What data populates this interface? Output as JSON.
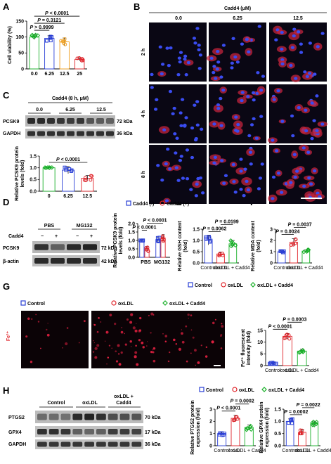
{
  "panels": {
    "A": {
      "letter": "A"
    },
    "B": {
      "letter": "B",
      "title": "Cadd4 (μM)",
      "columns": [
        "0.0",
        "6.25",
        "12.5"
      ],
      "rows": [
        "2 h",
        "4 h",
        "8 h"
      ]
    },
    "C": {
      "letter": "C",
      "title": "Cadd4 (8 h, μM)",
      "lanes": [
        "0.0",
        "6.25",
        "12.5"
      ],
      "bands": [
        "PCSK9",
        "GAPDH"
      ],
      "kda": [
        "72 kDa",
        "36 kDa"
      ]
    },
    "D": {
      "letter": "D",
      "groups": [
        "PBS",
        "MG132"
      ],
      "row_label": "Cadd4",
      "signs": [
        "−",
        "+",
        "−",
        "+"
      ],
      "bands": [
        "PCSK9",
        "β-actin"
      ],
      "kda": [
        "72 kDa",
        "42 kDa"
      ]
    },
    "E": {
      "letter": "E"
    },
    "F": {
      "letter": "F"
    },
    "G": {
      "letter": "G",
      "legend": [
        "Control",
        "oxLDL",
        "oxLDL + Cadd4"
      ],
      "fe_label": "Fe²⁺"
    },
    "H": {
      "letter": "H",
      "lanes": [
        "Control",
        "oxLDL",
        "oxLDL +",
        "Cadd4"
      ],
      "bands": [
        "PTGS2",
        "GPX4",
        "GAPDH"
      ],
      "kda": [
        "70 kDa",
        "17 kDa",
        "36 kDa"
      ]
    }
  },
  "legends": {
    "D": [
      "Cadd4 (-)",
      "Cadd4 (+)"
    ],
    "EF": [
      "Control",
      "oxLDL",
      "oxLDL + Cadd4"
    ],
    "H": [
      "Control",
      "oxLDL",
      "oxLDL + Cadd4"
    ]
  },
  "colors": {
    "blue": "#2a3fd6",
    "red": "#e0242a",
    "green": "#18b028",
    "orange": "#f0a020",
    "gray": "#8a8a8a",
    "black": "#000000"
  },
  "chart_data": [
    {
      "id": "A",
      "type": "bar",
      "ylabel": "Cell viability (%)",
      "categories": [
        "0.0",
        "6.25",
        "12.5",
        "25"
      ],
      "values": [
        100,
        96,
        85,
        30
      ],
      "errors": [
        8,
        8,
        12,
        5
      ],
      "ylim": [
        0,
        150
      ],
      "yticks": [
        "0",
        "50",
        "100",
        "150"
      ],
      "bar_colors": [
        "green",
        "blue",
        "orange",
        "red"
      ],
      "comparisons": [
        {
          "label": "P < 0.0001",
          "from": 0,
          "to": 3
        },
        {
          "label": "P = 0.3121",
          "from": 0,
          "to": 2
        },
        {
          "label": "P > 0.9999",
          "from": 0,
          "to": 1
        }
      ]
    },
    {
      "id": "C",
      "type": "bar",
      "ylabel": "Relative PCSK9 protein levels (fold)",
      "categories": [
        "0",
        "6.25",
        "12.5"
      ],
      "values": [
        1.0,
        0.9,
        0.55
      ],
      "errors": [
        0.02,
        0.15,
        0.12
      ],
      "ylim": [
        0,
        1.5
      ],
      "yticks": [
        "0.0",
        "0.5",
        "1.0",
        "1.5"
      ],
      "bar_colors": [
        "green",
        "blue",
        "red"
      ],
      "comparisons": [
        {
          "label": "P < 0.0001",
          "from": 0,
          "to": 2
        }
      ]
    },
    {
      "id": "D",
      "type": "bar",
      "ylabel": "Relative PCSK9 protein levels (fold)",
      "categories": [
        "PBS",
        "MG132"
      ],
      "series": [
        {
          "name": "Cadd4 (-)",
          "values": [
            1.0,
            1.05
          ],
          "errors": [
            0.02,
            0.12
          ]
        },
        {
          "name": "Cadd4 (+)",
          "values": [
            0.5,
            1.15
          ],
          "errors": [
            0.15,
            0.2
          ]
        }
      ],
      "ylim": [
        0,
        2.0
      ],
      "yticks": [
        "0.0",
        "0.5",
        "1.0",
        "1.5",
        "2.0"
      ],
      "comparisons": [
        {
          "label": "P < 0.0001",
          "from": 0,
          "to": 1
        },
        {
          "label": "P < 0.0001",
          "from": 1,
          "to": 3
        }
      ]
    },
    {
      "id": "E",
      "type": "bar",
      "ylabel": "Relative GSH content (fold)",
      "categories": [
        "Control",
        "oxLDL",
        "oxLDL + Cadd4"
      ],
      "values": [
        1.0,
        0.4,
        0.85
      ],
      "errors": [
        0.2,
        0.08,
        0.15
      ],
      "ylim": [
        0,
        1.5
      ],
      "yticks": [
        "0.0",
        "0.5",
        "1.0",
        "1.5"
      ],
      "bar_colors": [
        "blue",
        "red",
        "green"
      ],
      "comparisons": [
        {
          "label": "P = 0.0062",
          "from": 0,
          "to": 1
        },
        {
          "label": "P = 0.0199",
          "from": 1,
          "to": 2
        }
      ]
    },
    {
      "id": "F",
      "type": "bar",
      "ylabel": "Relative MDA content (fold)",
      "categories": [
        "Control",
        "oxLDL",
        "oxLDL + Cadd4"
      ],
      "values": [
        1.0,
        1.85,
        1.05
      ],
      "errors": [
        0.08,
        0.3,
        0.12
      ],
      "ylim": [
        0,
        3
      ],
      "yticks": [
        "0",
        "1",
        "2",
        "3"
      ],
      "bar_colors": [
        "blue",
        "red",
        "green"
      ],
      "comparisons": [
        {
          "label": "P = 0.0024",
          "from": 0,
          "to": 1
        },
        {
          "label": "P = 0.0037",
          "from": 1,
          "to": 2
        }
      ]
    },
    {
      "id": "G",
      "type": "bar",
      "ylabel": "Fe²⁺ fluorescent intensity (fold)",
      "categories": [
        "Control",
        "oxLDL",
        "oxLDL + Cadd4"
      ],
      "values": [
        1.0,
        12.5,
        6.2
      ],
      "errors": [
        0.3,
        1.2,
        0.8
      ],
      "ylim": [
        0,
        15
      ],
      "yticks": [
        "0",
        "5",
        "10",
        "15"
      ],
      "bar_colors": [
        "blue",
        "red",
        "green"
      ],
      "comparisons": [
        {
          "label": "P < 0.0001",
          "from": 0,
          "to": 1
        },
        {
          "label": "P = 0.0003",
          "from": 1,
          "to": 2
        }
      ]
    },
    {
      "id": "H1",
      "type": "bar",
      "ylabel": "Relative PTGS2 protein expression (fold)",
      "categories": [
        "Control",
        "oxLDL",
        "oxLDL + Cadd4"
      ],
      "values": [
        1.0,
        2.25,
        1.5
      ],
      "errors": [
        0.15,
        0.25,
        0.2
      ],
      "ylim": [
        0,
        3
      ],
      "yticks": [
        "0",
        "1",
        "2",
        "3"
      ],
      "bar_colors": [
        "blue",
        "red",
        "green"
      ],
      "comparisons": [
        {
          "label": "P < 0.0001",
          "from": 0,
          "to": 1
        },
        {
          "label": "P = 0.0002",
          "from": 1,
          "to": 2
        }
      ]
    },
    {
      "id": "H2",
      "type": "bar",
      "ylabel": "Relative GPX4 protein expression (fold)",
      "categories": [
        "Control",
        "oxLDL",
        "oxLDL + Cadd4"
      ],
      "values": [
        1.0,
        0.55,
        0.9
      ],
      "errors": [
        0.1,
        0.12,
        0.08
      ],
      "ylim": [
        0,
        1.5
      ],
      "yticks": [
        "0.0",
        "0.5",
        "1.0",
        "1.5"
      ],
      "bar_colors": [
        "blue",
        "red",
        "green"
      ],
      "comparisons": [
        {
          "label": "P = 0.0002",
          "from": 0,
          "to": 1
        },
        {
          "label": "P = 0.0022",
          "from": 1,
          "to": 2
        }
      ]
    }
  ]
}
